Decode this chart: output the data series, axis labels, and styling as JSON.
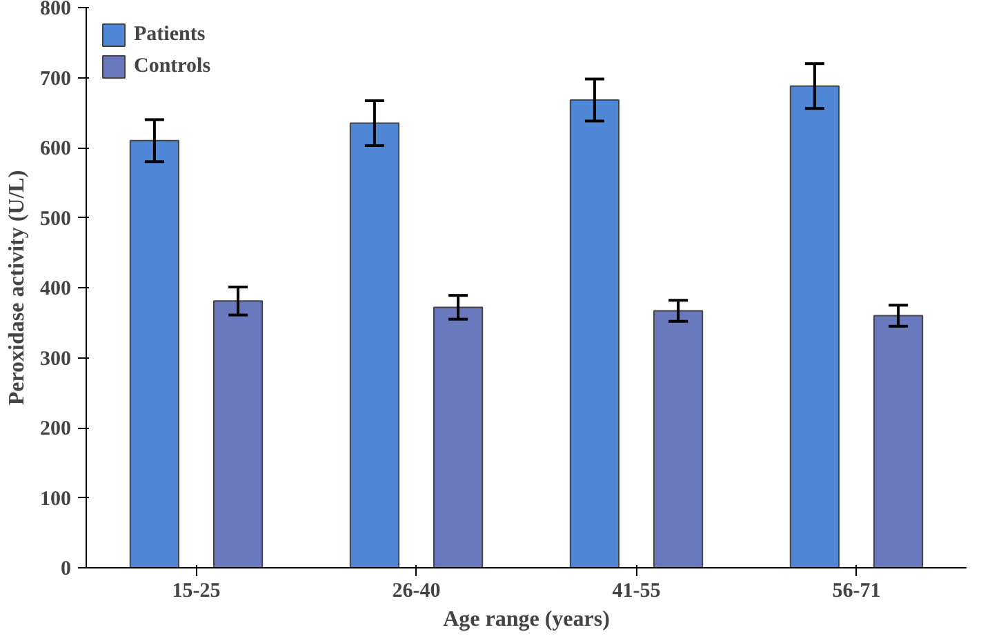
{
  "chart_data": {
    "type": "bar",
    "xlabel": "Age range (years)",
    "ylabel": "Peroxidase activity (U/L)",
    "categories": [
      "15-25",
      "26-40",
      "41-55",
      "56-71"
    ],
    "series": [
      {
        "name": "Patients",
        "color": "#4f86d6",
        "values": [
          610,
          635,
          668,
          688
        ],
        "errors": [
          30,
          32,
          30,
          32
        ]
      },
      {
        "name": "Controls",
        "color": "#6a78bd",
        "values": [
          381,
          372,
          367,
          360
        ],
        "errors": [
          20,
          17,
          15,
          15
        ]
      }
    ],
    "ylim": [
      0,
      800
    ],
    "yticks": [
      0,
      100,
      200,
      300,
      400,
      500,
      600,
      700,
      800
    ],
    "grid": false,
    "legend": "top left"
  }
}
